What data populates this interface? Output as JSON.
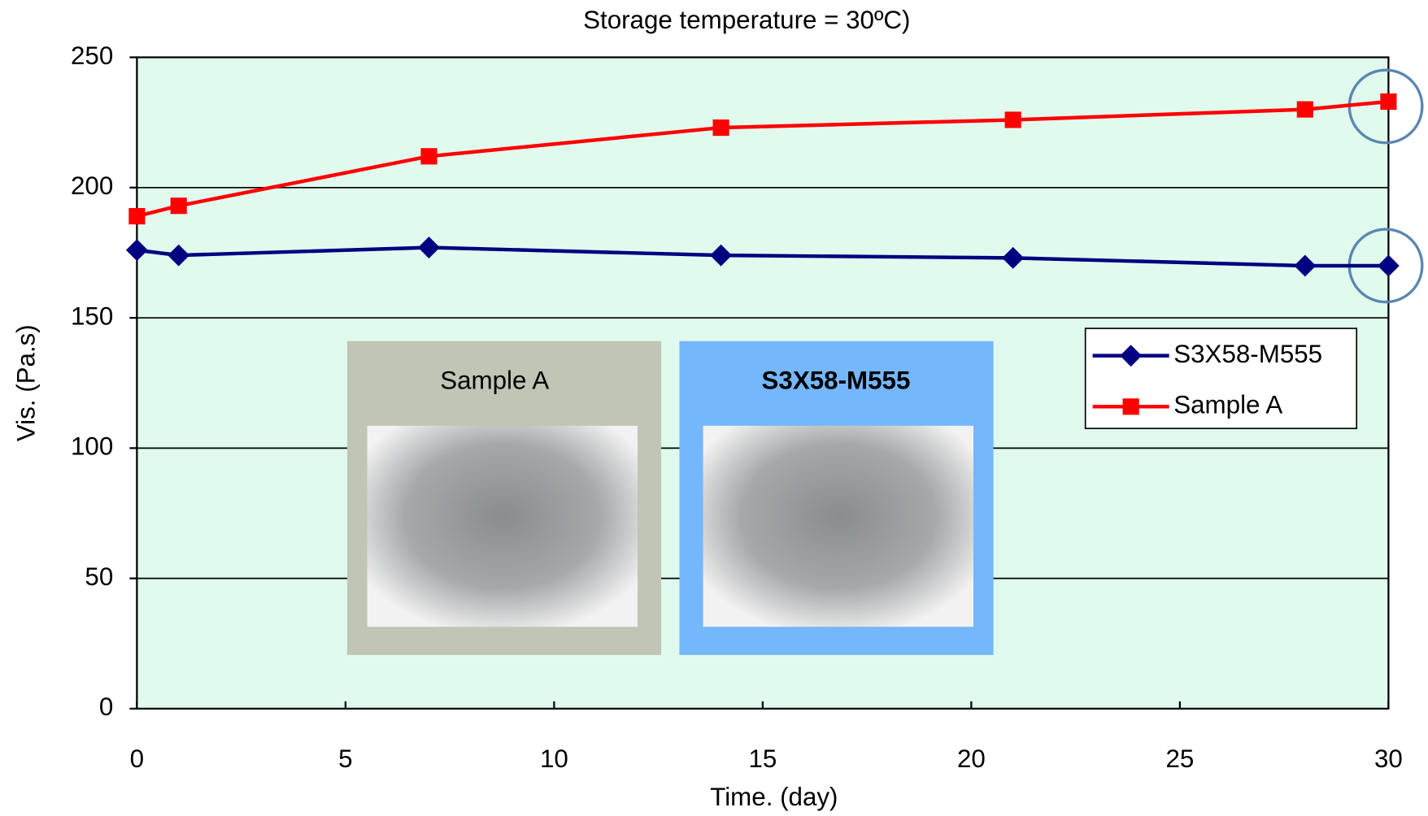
{
  "chart_data": {
    "type": "line",
    "title": "Storage temperature = 30ºC)",
    "x_label": "Time. (day)",
    "y_label": "Vis. (Pa.s)",
    "x": [
      0,
      1,
      7,
      14,
      21,
      28,
      30
    ],
    "series": [
      {
        "name": "S3X58-M555",
        "color": "#000080",
        "marker": "diamond",
        "values": [
          176,
          174,
          177,
          174,
          173,
          170,
          170
        ]
      },
      {
        "name": "Sample A",
        "color": "#ff0000",
        "marker": "square",
        "values": [
          189,
          193,
          212,
          223,
          226,
          230,
          233
        ]
      }
    ],
    "xlim": [
      0,
      30
    ],
    "xticks": [
      0,
      5,
      10,
      15,
      20,
      25,
      30
    ],
    "ylim": [
      0,
      250
    ],
    "yticks": [
      0,
      50,
      100,
      150,
      200,
      250
    ],
    "grid": true,
    "legend": "right",
    "insets": [
      "Sample A",
      "S3X58-M555"
    ]
  }
}
